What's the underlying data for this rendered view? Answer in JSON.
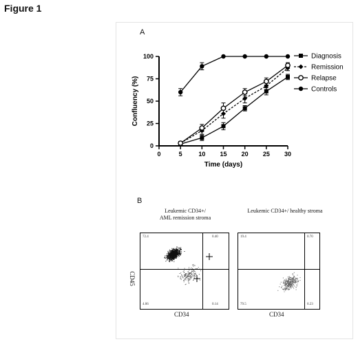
{
  "figure_title": "Figure 1",
  "chart_data": {
    "type": "line",
    "panel_label": "A",
    "xlabel": "Time (days)",
    "ylabel": "Confluency (%)",
    "x": [
      5,
      10,
      15,
      20,
      25,
      30
    ],
    "xlim": [
      0,
      30
    ],
    "ylim": [
      0,
      100
    ],
    "xticks": [
      "0",
      "5",
      "10",
      "15",
      "20",
      "25",
      "30"
    ],
    "yticks": [
      "0",
      "25",
      "50",
      "75",
      "100"
    ],
    "legend_position": "right",
    "grid": false,
    "series": [
      {
        "name": "Diagnosis",
        "values": [
          2,
          9,
          22,
          42,
          61,
          77
        ],
        "errors": [
          2,
          3,
          4,
          3,
          4,
          3
        ],
        "marker": "square",
        "dash": false
      },
      {
        "name": "Remission",
        "values": [
          3,
          17,
          36,
          53,
          67,
          87
        ],
        "errors": [
          2,
          4,
          5,
          5,
          4,
          3
        ],
        "marker": "diamond",
        "dash": true
      },
      {
        "name": "Relapse",
        "values": [
          3,
          20,
          42,
          60,
          72,
          90
        ],
        "errors": [
          2,
          4,
          6,
          4,
          4,
          3
        ],
        "marker": "open-circle",
        "dash": false
      },
      {
        "name": "Controls",
        "values": [
          60,
          89,
          100,
          100,
          100,
          100
        ],
        "errors": [
          4,
          4,
          0,
          0,
          0,
          0
        ],
        "marker": "filled-circle",
        "dash": false
      }
    ]
  },
  "panel_b": {
    "label": "B",
    "left": {
      "title_line1": "Leukemic CD34+/",
      "title_line2": "AML remission stroma",
      "ylabel": "CD45",
      "xlabel": "CD34",
      "quadrants": {
        "ul": "72.4",
        "ur": "0.40",
        "ll": "4.06",
        "lr": "0.14"
      }
    },
    "right": {
      "title": "Leukemic CD34+/ healthy stroma",
      "xlabel": "CD34",
      "quadrants": {
        "ul": "19.4",
        "ur": "0.70",
        "ll": "79.5",
        "lr": "0.23"
      }
    }
  }
}
